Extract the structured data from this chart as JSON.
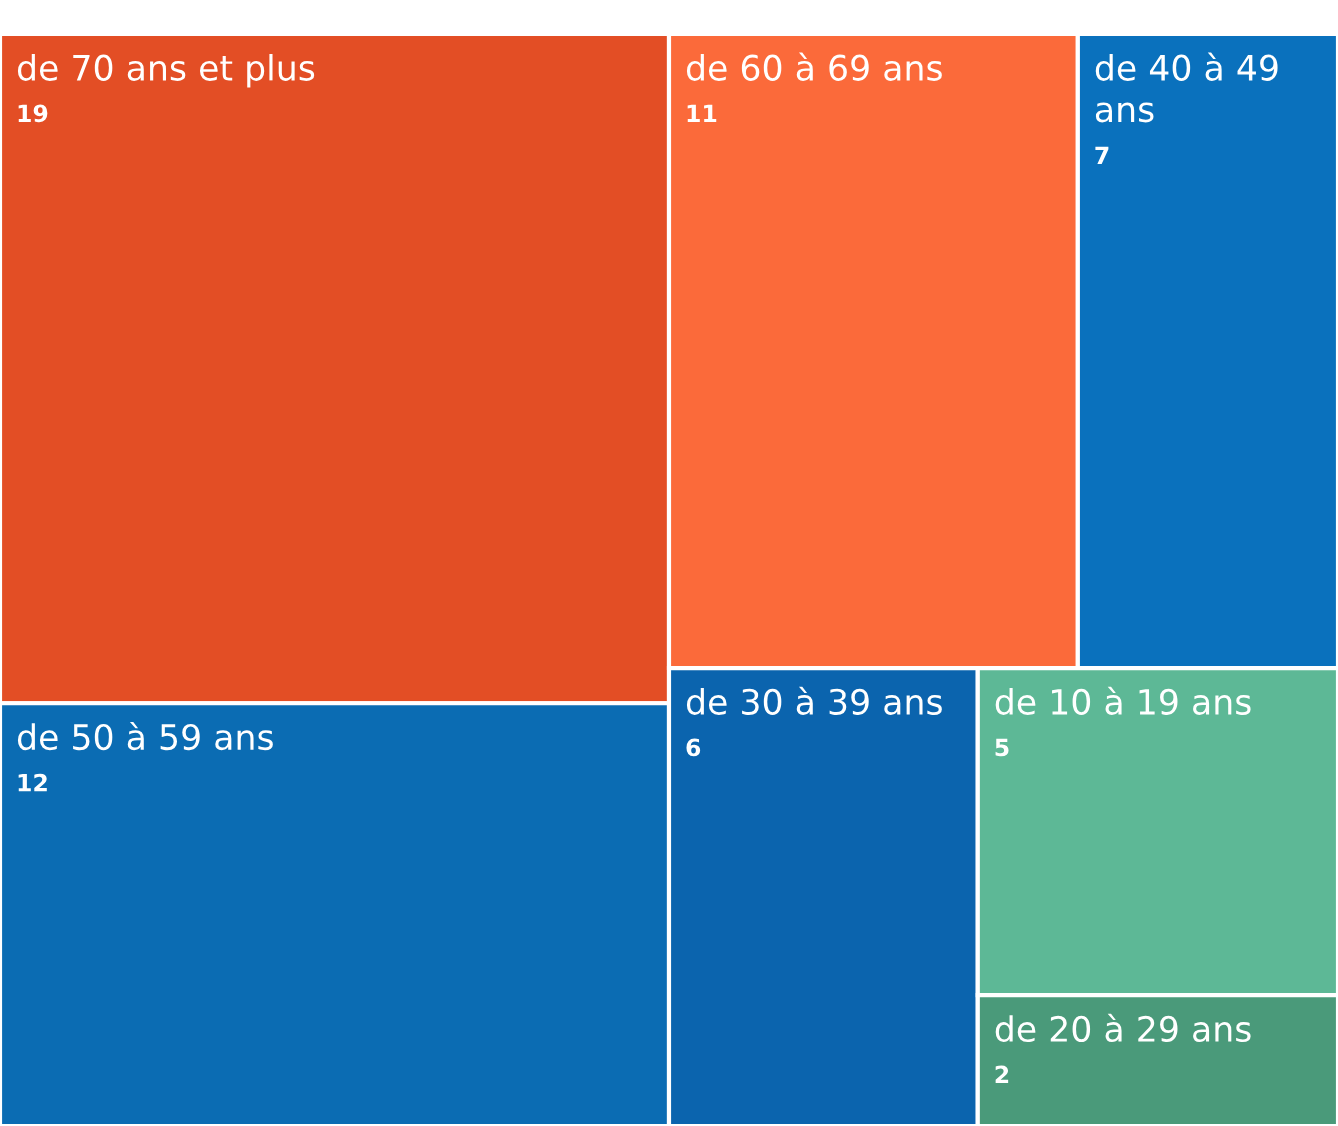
{
  "chart_data": {
    "type": "other",
    "categories": [
      "de 70 ans et plus",
      "de 60 à 69 ans",
      "de 40 à 49 ans",
      "de 50 à 59 ans",
      "de 30 à 39 ans",
      "de 10 à 19 ans",
      "de 20 à 29 ans"
    ],
    "values": [
      19,
      11,
      7,
      12,
      6,
      5,
      2
    ],
    "colors": [
      "#e34e25",
      "#fb6a3a",
      "#0a71bd",
      "#0b6cb3",
      "#0b64ae",
      "#5db896",
      "#4a9a7a"
    ],
    "data_labels": true
  }
}
